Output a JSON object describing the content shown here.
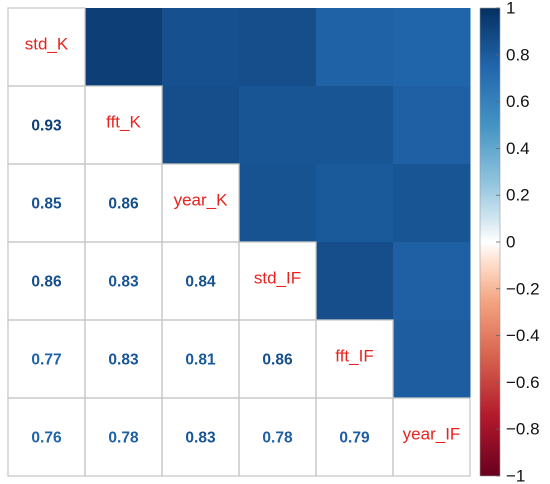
{
  "chart_data": {
    "type": "heatmap",
    "variables": [
      "std_K",
      "fft_K",
      "year_K",
      "std_IF",
      "fft_IF",
      "year_IF"
    ],
    "matrix": [
      [
        1.0,
        0.93,
        0.85,
        0.86,
        0.77,
        0.76
      ],
      [
        0.93,
        1.0,
        0.86,
        0.83,
        0.83,
        0.78
      ],
      [
        0.85,
        0.86,
        1.0,
        0.84,
        0.81,
        0.83
      ],
      [
        0.86,
        0.83,
        0.84,
        1.0,
        0.86,
        0.78
      ],
      [
        0.77,
        0.83,
        0.81,
        0.86,
        1.0,
        0.79
      ],
      [
        0.76,
        0.78,
        0.83,
        0.78,
        0.79,
        1.0
      ]
    ],
    "lower_triangle_coefficients": [
      {
        "row": "fft_K",
        "col": "std_K",
        "label": "0.93"
      },
      {
        "row": "year_K",
        "col": "std_K",
        "label": "0.85"
      },
      {
        "row": "year_K",
        "col": "fft_K",
        "label": "0.86"
      },
      {
        "row": "std_IF",
        "col": "std_K",
        "label": "0.86"
      },
      {
        "row": "std_IF",
        "col": "fft_K",
        "label": "0.83"
      },
      {
        "row": "std_IF",
        "col": "year_K",
        "label": "0.84"
      },
      {
        "row": "fft_IF",
        "col": "std_K",
        "label": "0.77"
      },
      {
        "row": "fft_IF",
        "col": "fft_K",
        "label": "0.83"
      },
      {
        "row": "fft_IF",
        "col": "year_K",
        "label": "0.81"
      },
      {
        "row": "fft_IF",
        "col": "std_IF",
        "label": "0.86"
      },
      {
        "row": "year_IF",
        "col": "std_K",
        "label": "0.76"
      },
      {
        "row": "year_IF",
        "col": "fft_K",
        "label": "0.78"
      },
      {
        "row": "year_IF",
        "col": "year_K",
        "label": "0.83"
      },
      {
        "row": "year_IF",
        "col": "std_IF",
        "label": "0.78"
      },
      {
        "row": "year_IF",
        "col": "fft_IF",
        "label": "0.79"
      }
    ],
    "upper_triangle": "colored tiles",
    "diagonal": "variable names",
    "color_scale": {
      "range": [
        -1,
        1
      ],
      "ticks": [
        "1",
        "0.8",
        "0.6",
        "0.4",
        "0.2",
        "0",
        "−0.2",
        "−0.4",
        "−0.6",
        "−0.8",
        "−1"
      ],
      "low_color": "#67001f",
      "mid_color": "#ffffff",
      "high_color": "#053061",
      "gradient_stops": [
        {
          "value": -1,
          "color": "#67001f"
        },
        {
          "value": -0.75,
          "color": "#b2182b"
        },
        {
          "value": -0.5,
          "color": "#d6604d"
        },
        {
          "value": -0.25,
          "color": "#f4a582"
        },
        {
          "value": -0.1,
          "color": "#fddbc7"
        },
        {
          "value": 0,
          "color": "#ffffff"
        },
        {
          "value": 0.1,
          "color": "#d1e5f0"
        },
        {
          "value": 0.25,
          "color": "#92c5de"
        },
        {
          "value": 0.5,
          "color": "#4393c3"
        },
        {
          "value": 0.75,
          "color": "#2166ac"
        },
        {
          "value": 1,
          "color": "#053061"
        }
      ]
    },
    "label_color": "#e8231f",
    "grid_color": "#c8c8c8"
  }
}
